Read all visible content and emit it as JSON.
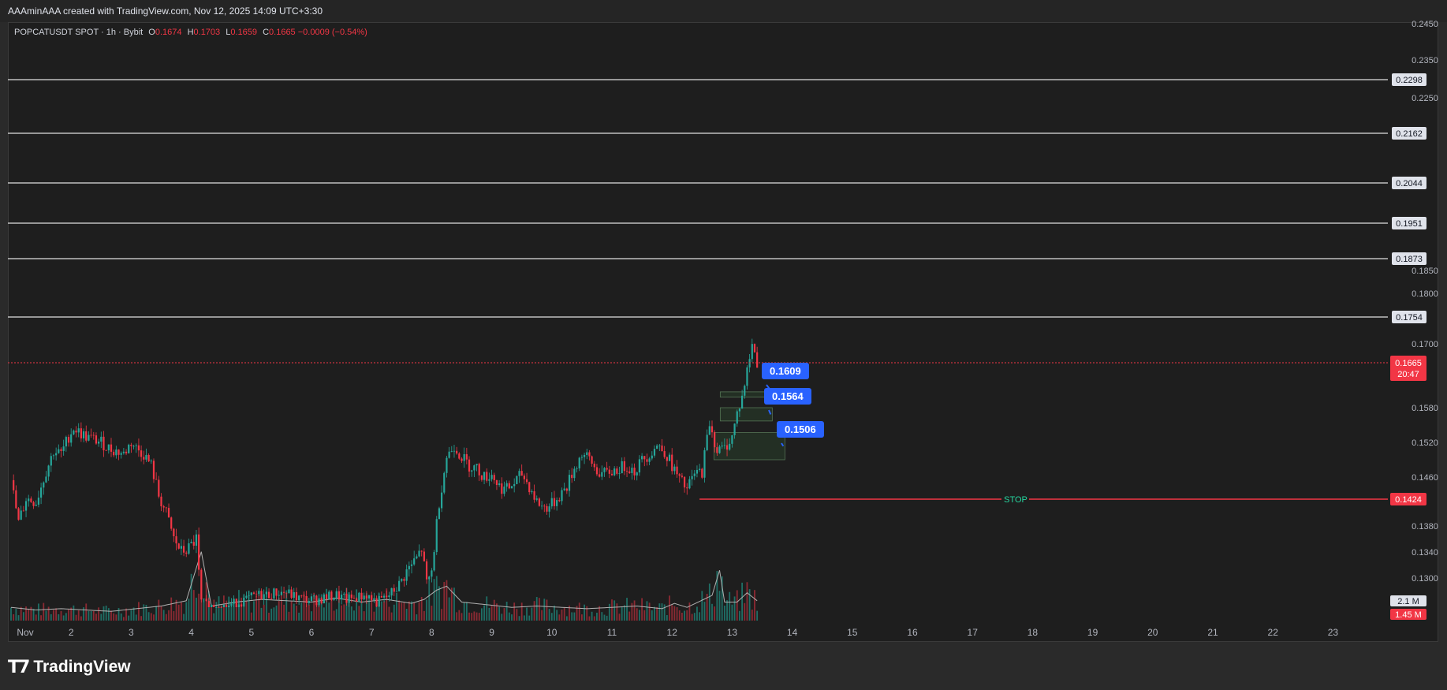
{
  "header": {
    "attribution": "AAAminAAA created with TradingView.com, Nov 12, 2025 14:09 UTC+3:30"
  },
  "legend": {
    "symbol": "POPCATUSDT SPOT · 1h · Bybit",
    "o_label": "O",
    "o": "0.1674",
    "h_label": "H",
    "h": "0.1703",
    "l_label": "L",
    "l": "0.1659",
    "c_label": "C",
    "c": "0.1665",
    "change": "−0.0009 (−0.54%)"
  },
  "footer": {
    "brand": "TradingView",
    "logo_icon": "tradingview-logo-icon"
  },
  "colors": {
    "up": "#26a69a",
    "down": "#f23645",
    "level": "#e0e0e0",
    "stop": "#f23645",
    "zone": "#4caf50",
    "pill": "#2962ff",
    "stop_label": "#26d7a0"
  },
  "chart_data": {
    "type": "candlestick",
    "interval": "1h",
    "y_ticks": [
      "0.2450",
      "0.2350",
      "0.2250",
      "0.1850",
      "0.1800",
      "0.1700",
      "0.1580",
      "0.1520",
      "0.1460",
      "0.1380",
      "0.1340",
      "0.1300"
    ],
    "x_ticks": [
      "Nov",
      "2",
      "3",
      "4",
      "5",
      "6",
      "7",
      "8",
      "9",
      "10",
      "11",
      "12",
      "13",
      "14",
      "15",
      "16",
      "17",
      "18",
      "19",
      "20",
      "21",
      "22",
      "23"
    ],
    "horizontal_levels": [
      {
        "price": 0.2298,
        "label": "0.2298"
      },
      {
        "price": 0.2162,
        "label": "0.2162"
      },
      {
        "price": 0.2044,
        "label": "0.2044"
      },
      {
        "price": 0.1951,
        "label": "0.1951"
      },
      {
        "price": 0.1873,
        "label": "0.1873"
      },
      {
        "price": 0.1754,
        "label": "0.1754"
      }
    ],
    "stop": {
      "price": 0.1424,
      "label": "0.1424",
      "text": "STOP"
    },
    "current_price": {
      "price": 0.1665,
      "label": "0.1665",
      "countdown": "20:47"
    },
    "entry_zones": [
      {
        "label": "0.1609",
        "top": 0.161,
        "bottom": 0.16
      },
      {
        "label": "0.1564",
        "top": 0.158,
        "bottom": 0.1557
      },
      {
        "label": "0.1506",
        "top": 0.1537,
        "bottom": 0.149
      }
    ],
    "volume_labels": {
      "ma": "2.1 M",
      "volume": "1.45 M"
    },
    "price_path": [
      [
        0,
        0.1455
      ],
      [
        3,
        0.1385
      ],
      [
        6,
        0.1425
      ],
      [
        10,
        0.142
      ],
      [
        14,
        0.147
      ],
      [
        17,
        0.1505
      ],
      [
        20,
        0.15
      ],
      [
        23,
        0.153
      ],
      [
        25,
        0.1545
      ],
      [
        28,
        0.1535
      ],
      [
        30,
        0.153
      ],
      [
        33,
        0.1525
      ],
      [
        36,
        0.152
      ],
      [
        39,
        0.151
      ],
      [
        42,
        0.1505
      ],
      [
        45,
        0.15
      ],
      [
        48,
        0.152
      ],
      [
        50,
        0.151
      ],
      [
        53,
        0.15
      ],
      [
        56,
        0.148
      ],
      [
        59,
        0.143
      ],
      [
        62,
        0.14
      ],
      [
        65,
        0.136
      ],
      [
        68,
        0.134
      ],
      [
        71,
        0.1345
      ],
      [
        74,
        0.136
      ],
      [
        76,
        0.125
      ],
      [
        79,
        0.124
      ],
      [
        82,
        0.1245
      ],
      [
        86,
        0.124
      ],
      [
        90,
        0.125
      ],
      [
        94,
        0.1255
      ],
      [
        98,
        0.1265
      ],
      [
        102,
        0.1265
      ],
      [
        106,
        0.127
      ],
      [
        110,
        0.127
      ],
      [
        114,
        0.126
      ],
      [
        118,
        0.1255
      ],
      [
        122,
        0.1255
      ],
      [
        126,
        0.126
      ],
      [
        130,
        0.1265
      ],
      [
        134,
        0.1255
      ],
      [
        138,
        0.126
      ],
      [
        142,
        0.1265
      ],
      [
        146,
        0.125
      ],
      [
        150,
        0.126
      ],
      [
        154,
        0.128
      ],
      [
        158,
        0.131
      ],
      [
        162,
        0.133
      ],
      [
        164,
        0.1345
      ],
      [
        166,
        0.129
      ],
      [
        168,
        0.131
      ],
      [
        171,
        0.142
      ],
      [
        174,
        0.1495
      ],
      [
        177,
        0.1515
      ],
      [
        180,
        0.1495
      ],
      [
        183,
        0.148
      ],
      [
        186,
        0.1475
      ],
      [
        189,
        0.146
      ],
      [
        192,
        0.1465
      ],
      [
        195,
        0.1445
      ],
      [
        198,
        0.144
      ],
      [
        201,
        0.145
      ],
      [
        204,
        0.1465
      ],
      [
        207,
        0.1445
      ],
      [
        210,
        0.142
      ],
      [
        213,
        0.141
      ],
      [
        216,
        0.1415
      ],
      [
        219,
        0.143
      ],
      [
        222,
        0.1445
      ],
      [
        225,
        0.1475
      ],
      [
        228,
        0.15
      ],
      [
        231,
        0.149
      ],
      [
        234,
        0.147
      ],
      [
        237,
        0.1465
      ],
      [
        240,
        0.147
      ],
      [
        243,
        0.1475
      ],
      [
        246,
        0.148
      ],
      [
        249,
        0.147
      ],
      [
        252,
        0.149
      ],
      [
        255,
        0.15
      ],
      [
        258,
        0.1515
      ],
      [
        261,
        0.1505
      ],
      [
        264,
        0.148
      ],
      [
        267,
        0.1455
      ],
      [
        270,
        0.144
      ],
      [
        273,
        0.1465
      ],
      [
        276,
        0.147
      ],
      [
        279,
        0.1555
      ],
      [
        282,
        0.1505
      ],
      [
        285,
        0.151
      ],
      [
        288,
        0.153
      ],
      [
        290,
        0.157
      ],
      [
        292,
        0.16
      ],
      [
        294,
        0.165
      ],
      [
        296,
        0.17
      ],
      [
        298,
        0.1665
      ]
    ],
    "volume_path": [
      [
        0,
        1.0
      ],
      [
        10,
        0.8
      ],
      [
        20,
        0.9
      ],
      [
        30,
        0.8
      ],
      [
        40,
        0.7
      ],
      [
        50,
        0.9
      ],
      [
        60,
        1.1
      ],
      [
        70,
        1.5
      ],
      [
        76,
        5.2
      ],
      [
        80,
        1.1
      ],
      [
        90,
        1.4
      ],
      [
        100,
        1.6
      ],
      [
        110,
        1.5
      ],
      [
        120,
        1.4
      ],
      [
        130,
        1.7
      ],
      [
        140,
        1.4
      ],
      [
        150,
        1.6
      ],
      [
        160,
        1.3
      ],
      [
        165,
        1.6
      ],
      [
        170,
        2.3
      ],
      [
        174,
        2.6
      ],
      [
        180,
        1.4
      ],
      [
        190,
        1.2
      ],
      [
        200,
        1.0
      ],
      [
        210,
        1.1
      ],
      [
        220,
        1.0
      ],
      [
        230,
        0.9
      ],
      [
        240,
        1.0
      ],
      [
        250,
        1.1
      ],
      [
        260,
        0.9
      ],
      [
        265,
        1.3
      ],
      [
        270,
        1.0
      ],
      [
        280,
        1.9
      ],
      [
        283,
        3.8
      ],
      [
        285,
        1.4
      ],
      [
        290,
        1.4
      ],
      [
        294,
        2.1
      ],
      [
        296,
        1.8
      ],
      [
        298,
        1.5
      ]
    ]
  }
}
